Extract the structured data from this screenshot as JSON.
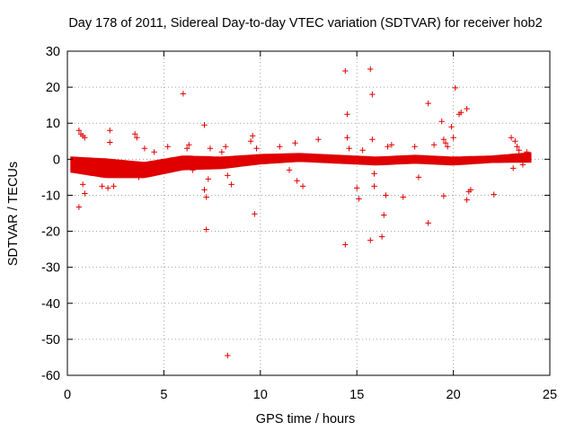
{
  "chart_data": {
    "type": "scatter",
    "title": "Day 178 of 2011, Sidereal Day-to-day VTEC variation (SDTVAR) for receiver hob2",
    "xlabel": "GPS time / hours",
    "ylabel": "SDTVAR / TECUs",
    "xlim": [
      0,
      25
    ],
    "ylim": [
      -60,
      30
    ],
    "x_ticks": [
      0,
      5,
      10,
      15,
      20,
      25
    ],
    "y_ticks": [
      30,
      20,
      10,
      0,
      -10,
      -20,
      -30,
      -40,
      -50,
      -60
    ],
    "grid": true,
    "marker": "+",
    "series": [
      {
        "name": "SDTVAR",
        "color": "#e00000",
        "band": {
          "description": "dense scatter band",
          "x_range": [
            0.2,
            24.0
          ],
          "center": [
            [
              0.2,
              -1.5
            ],
            [
              2.0,
              -2.5
            ],
            [
              4.0,
              -3.0
            ],
            [
              6.0,
              -1.0
            ],
            [
              8.0,
              -1.0
            ],
            [
              10.0,
              0.0
            ],
            [
              12.0,
              0.5
            ],
            [
              14.0,
              0.0
            ],
            [
              16.0,
              -0.5
            ],
            [
              18.0,
              0.0
            ],
            [
              20.0,
              -0.5
            ],
            [
              22.0,
              0.0
            ],
            [
              24.0,
              0.5
            ]
          ],
          "half_width": [
            [
              0.2,
              2.0
            ],
            [
              2.0,
              2.5
            ],
            [
              4.0,
              2.0
            ],
            [
              6.0,
              1.8
            ],
            [
              8.0,
              1.5
            ],
            [
              10.0,
              1.2
            ],
            [
              12.0,
              1.0
            ],
            [
              14.0,
              1.0
            ],
            [
              16.0,
              1.0
            ],
            [
              18.0,
              1.0
            ],
            [
              20.0,
              1.0
            ],
            [
              22.0,
              0.8
            ],
            [
              24.0,
              1.2
            ]
          ]
        },
        "points": [
          [
            0.6,
            8.0
          ],
          [
            0.7,
            7.0
          ],
          [
            0.8,
            6.5
          ],
          [
            0.9,
            6.0
          ],
          [
            0.6,
            -13.3
          ],
          [
            0.8,
            -7.0
          ],
          [
            0.9,
            -9.5
          ],
          [
            1.8,
            -7.5
          ],
          [
            2.1,
            -8.0
          ],
          [
            2.2,
            8.0
          ],
          [
            2.2,
            4.7
          ],
          [
            2.4,
            -7.5
          ],
          [
            3.5,
            7.0
          ],
          [
            3.6,
            6.0
          ],
          [
            3.7,
            -5.0
          ],
          [
            4.0,
            3.0
          ],
          [
            4.5,
            2.0
          ],
          [
            5.2,
            3.5
          ],
          [
            6.0,
            18.2
          ],
          [
            6.2,
            3.0
          ],
          [
            6.3,
            4.0
          ],
          [
            6.5,
            -3.0
          ],
          [
            7.1,
            9.5
          ],
          [
            7.1,
            -8.5
          ],
          [
            7.2,
            -19.5
          ],
          [
            7.2,
            -10.5
          ],
          [
            7.3,
            -5.5
          ],
          [
            7.4,
            3.0
          ],
          [
            8.0,
            2.0
          ],
          [
            8.2,
            3.5
          ],
          [
            8.3,
            -4.5
          ],
          [
            8.3,
            -54.5
          ],
          [
            8.5,
            -7.0
          ],
          [
            9.5,
            5.0
          ],
          [
            9.6,
            6.5
          ],
          [
            9.7,
            -15.2
          ],
          [
            9.8,
            3.0
          ],
          [
            11.0,
            3.5
          ],
          [
            11.5,
            -3.0
          ],
          [
            11.8,
            4.5
          ],
          [
            11.9,
            -6.0
          ],
          [
            12.2,
            -7.5
          ],
          [
            13.0,
            5.5
          ],
          [
            14.4,
            24.5
          ],
          [
            14.5,
            12.5
          ],
          [
            14.4,
            -23.7
          ],
          [
            14.5,
            6.0
          ],
          [
            14.6,
            3.0
          ],
          [
            15.0,
            -8.0
          ],
          [
            15.1,
            -11.0
          ],
          [
            15.3,
            2.5
          ],
          [
            15.7,
            25.0
          ],
          [
            15.8,
            18.0
          ],
          [
            15.7,
            -22.5
          ],
          [
            15.8,
            5.5
          ],
          [
            15.9,
            -7.5
          ],
          [
            15.9,
            -4.0
          ],
          [
            16.3,
            -21.5
          ],
          [
            16.4,
            -15.5
          ],
          [
            16.5,
            -10.0
          ],
          [
            16.6,
            3.5
          ],
          [
            16.8,
            4.0
          ],
          [
            17.4,
            -10.5
          ],
          [
            18.0,
            3.5
          ],
          [
            18.2,
            -5.0
          ],
          [
            18.7,
            15.5
          ],
          [
            18.7,
            -17.7
          ],
          [
            19.0,
            4.0
          ],
          [
            19.4,
            10.5
          ],
          [
            19.5,
            5.5
          ],
          [
            19.5,
            -10.2
          ],
          [
            19.6,
            4.5
          ],
          [
            19.7,
            3.5
          ],
          [
            19.9,
            9.0
          ],
          [
            20.0,
            6.0
          ],
          [
            20.1,
            19.8
          ],
          [
            20.3,
            12.5
          ],
          [
            20.4,
            13.0
          ],
          [
            20.7,
            14.0
          ],
          [
            20.7,
            -11.3
          ],
          [
            20.8,
            -9.0
          ],
          [
            20.9,
            -8.5
          ],
          [
            22.1,
            -9.8
          ],
          [
            23.0,
            6.0
          ],
          [
            23.1,
            -2.5
          ],
          [
            23.2,
            5.0
          ],
          [
            23.3,
            3.5
          ],
          [
            23.4,
            2.5
          ],
          [
            23.6,
            -1.5
          ],
          [
            23.8,
            2.0
          ]
        ]
      }
    ]
  }
}
